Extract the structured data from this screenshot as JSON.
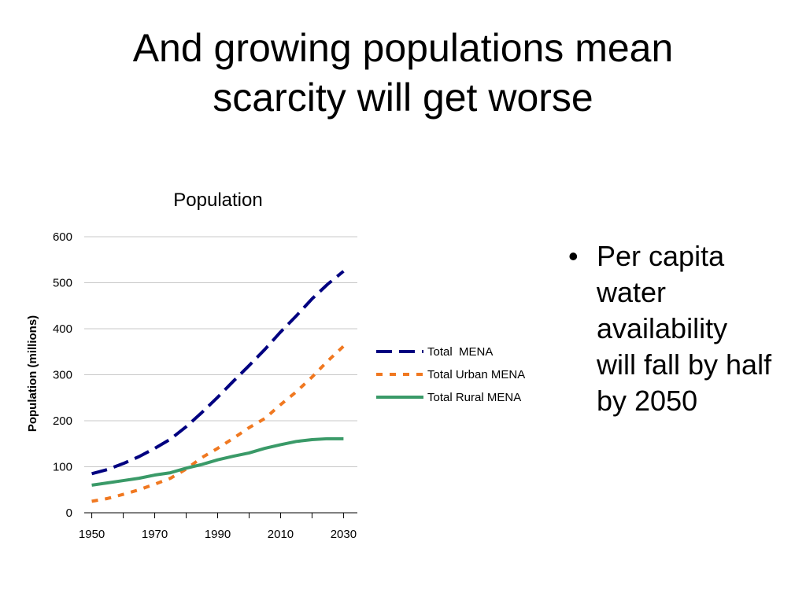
{
  "slide": {
    "title_lines": [
      "And growing populations mean",
      "scarcity will get worse"
    ],
    "bullet_symbol": "•",
    "bullets": [
      "Per capita water availability will fall by half by 2050"
    ]
  },
  "chart_data": {
    "type": "line",
    "title": "Population",
    "xlabel": "",
    "ylabel": "Population (millions)",
    "xlim": [
      1947.6,
      2034.4
    ],
    "ylim": [
      0,
      600
    ],
    "x_ticks": [
      1950,
      1970,
      1990,
      2010,
      2030
    ],
    "y_ticks": [
      0,
      100,
      200,
      300,
      400,
      500,
      600
    ],
    "grid": true,
    "legend": "right",
    "x": [
      1950,
      1955,
      1960,
      1965,
      1970,
      1975,
      1980,
      1985,
      1990,
      1995,
      2000,
      2005,
      2010,
      2015,
      2020,
      2025,
      2030
    ],
    "series": [
      {
        "name": "Total  MENA",
        "color": "#000080",
        "style": "dashed",
        "values": [
          85,
          94,
          107,
          122,
          140,
          160,
          187,
          218,
          251,
          286,
          320,
          355,
          393,
          428,
          465,
          497,
          525
        ]
      },
      {
        "name": "Total Urban MENA",
        "color": "#F07820",
        "style": "dotted",
        "values": [
          25,
          31,
          40,
          50,
          62,
          75,
          95,
          120,
          140,
          162,
          185,
          205,
          235,
          263,
          295,
          330,
          362
        ]
      },
      {
        "name": "Total Rural MENA",
        "color": "#3A9A68",
        "style": "solid",
        "values": [
          60,
          65,
          70,
          75,
          82,
          87,
          97,
          105,
          115,
          123,
          130,
          140,
          148,
          155,
          159,
          161,
          161
        ]
      }
    ]
  }
}
